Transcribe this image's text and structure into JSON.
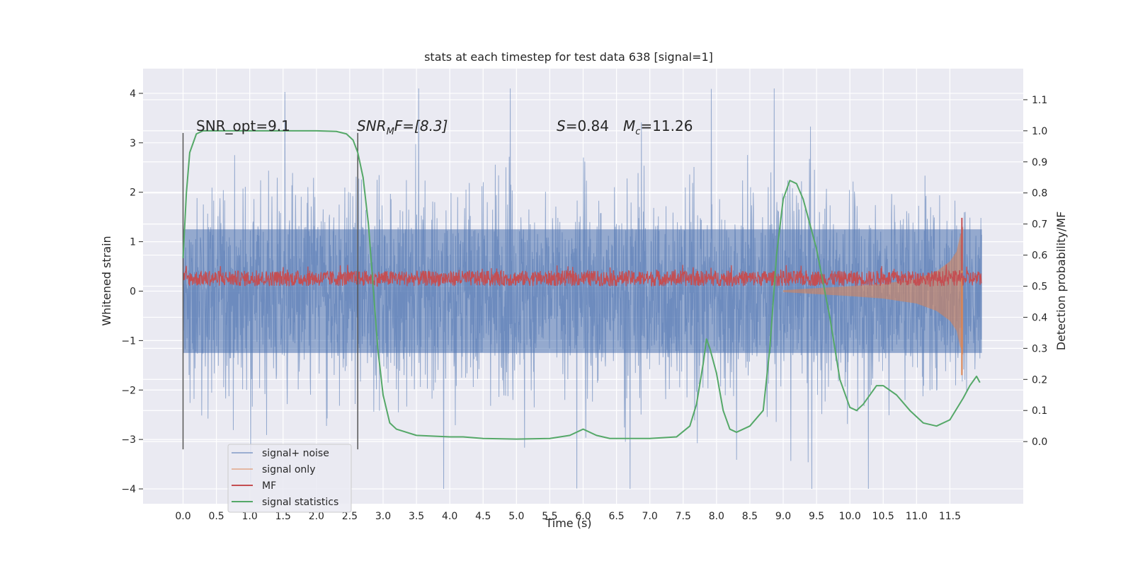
{
  "chart_data": {
    "type": "line",
    "title": "stats at each timestep for test data 638 [signal=1]",
    "xlabel": "Time (s)",
    "ylabel": "Whitened strain",
    "ylabel_right": "Detection probability/MF",
    "xlim": [
      -0.6,
      12.6
    ],
    "ylim": [
      -4.3,
      4.5
    ],
    "ylim_right": [
      -0.2,
      1.2
    ],
    "x_ticks": [
      "0.0",
      "0.5",
      "1.0",
      "1.5",
      "2.0",
      "2.5",
      "3.0",
      "3.5",
      "4.0",
      "4.5",
      "5.0",
      "5.5",
      "6.0",
      "6.5",
      "7.0",
      "7.5",
      "8.0",
      "8.5",
      "9.0",
      "9.5",
      "10.0",
      "10.5",
      "11.0",
      "11.5"
    ],
    "y_ticks": [
      "4",
      "3",
      "2",
      "1",
      "0",
      "−1",
      "−2",
      "−3",
      "−4"
    ],
    "y_ticks_right": [
      "1.1",
      "1.0",
      "0.9",
      "0.8",
      "0.7",
      "0.6",
      "0.5",
      "0.4",
      "0.3",
      "0.2",
      "0.1",
      "0.0"
    ],
    "grid": true,
    "legend_placement": "lower-left",
    "annotations": {
      "snr_opt": "SNR_opt=9.1",
      "snr_mf_name": "SNR",
      "snr_mf_sub": "M",
      "snr_mf_rest": "F=[8.3]",
      "s_name": "S",
      "s_rest": "=0.84",
      "mc_name": "M",
      "mc_sub": "c",
      "mc_rest": "=11.26"
    },
    "vertical_markers": [
      0.0,
      2.62
    ],
    "series": [
      {
        "name": "signal+ noise",
        "axis": "left",
        "color": "#4c72b0",
        "x_range": [
          0.0,
          11.98
        ],
        "band_1sigma": 1.25,
        "peak_range": [
          -4.0,
          4.1
        ]
      },
      {
        "name": "signal only",
        "axis": "left",
        "color": "#dd8452",
        "x": [
          9.0,
          10.0,
          10.5,
          11.0,
          11.3,
          11.5,
          11.6,
          11.65,
          11.7
        ],
        "amplitude": [
          0.02,
          0.1,
          0.15,
          0.25,
          0.4,
          0.6,
          0.8,
          1.1,
          1.3
        ]
      },
      {
        "name": "MF",
        "axis": "right",
        "color": "#c44e52",
        "x_range": [
          0.0,
          11.98
        ],
        "level": [
          0.5,
          0.55
        ],
        "spike": {
          "x": 11.68,
          "value": 0.72
        }
      },
      {
        "name": "signal statistics",
        "axis": "right",
        "color": "#55a868",
        "x": [
          0.0,
          0.05,
          0.1,
          0.2,
          0.3,
          0.5,
          1.0,
          1.5,
          2.0,
          2.3,
          2.45,
          2.55,
          2.62,
          2.7,
          2.78,
          2.85,
          2.92,
          3.0,
          3.1,
          3.2,
          3.5,
          4.0,
          4.2,
          4.5,
          5.0,
          5.5,
          5.8,
          6.0,
          6.2,
          6.4,
          6.6,
          7.0,
          7.4,
          7.6,
          7.7,
          7.8,
          7.85,
          7.9,
          8.0,
          8.1,
          8.2,
          8.3,
          8.5,
          8.7,
          8.8,
          8.9,
          9.0,
          9.1,
          9.2,
          9.3,
          9.5,
          9.7,
          9.85,
          10.0,
          10.1,
          10.2,
          10.4,
          10.5,
          10.7,
          10.9,
          11.1,
          11.3,
          11.5,
          11.7,
          11.8,
          11.9,
          11.95
        ],
        "y": [
          0.59,
          0.8,
          0.93,
          0.99,
          1.0,
          1.0,
          1.0,
          1.0,
          1.0,
          0.998,
          0.99,
          0.97,
          0.93,
          0.85,
          0.7,
          0.5,
          0.3,
          0.15,
          0.06,
          0.04,
          0.02,
          0.015,
          0.015,
          0.01,
          0.008,
          0.01,
          0.02,
          0.04,
          0.02,
          0.01,
          0.01,
          0.01,
          0.015,
          0.05,
          0.12,
          0.25,
          0.33,
          0.3,
          0.22,
          0.1,
          0.04,
          0.03,
          0.05,
          0.1,
          0.3,
          0.6,
          0.78,
          0.84,
          0.83,
          0.78,
          0.62,
          0.4,
          0.2,
          0.11,
          0.1,
          0.12,
          0.18,
          0.18,
          0.15,
          0.1,
          0.06,
          0.05,
          0.07,
          0.14,
          0.18,
          0.21,
          0.19
        ]
      }
    ]
  }
}
